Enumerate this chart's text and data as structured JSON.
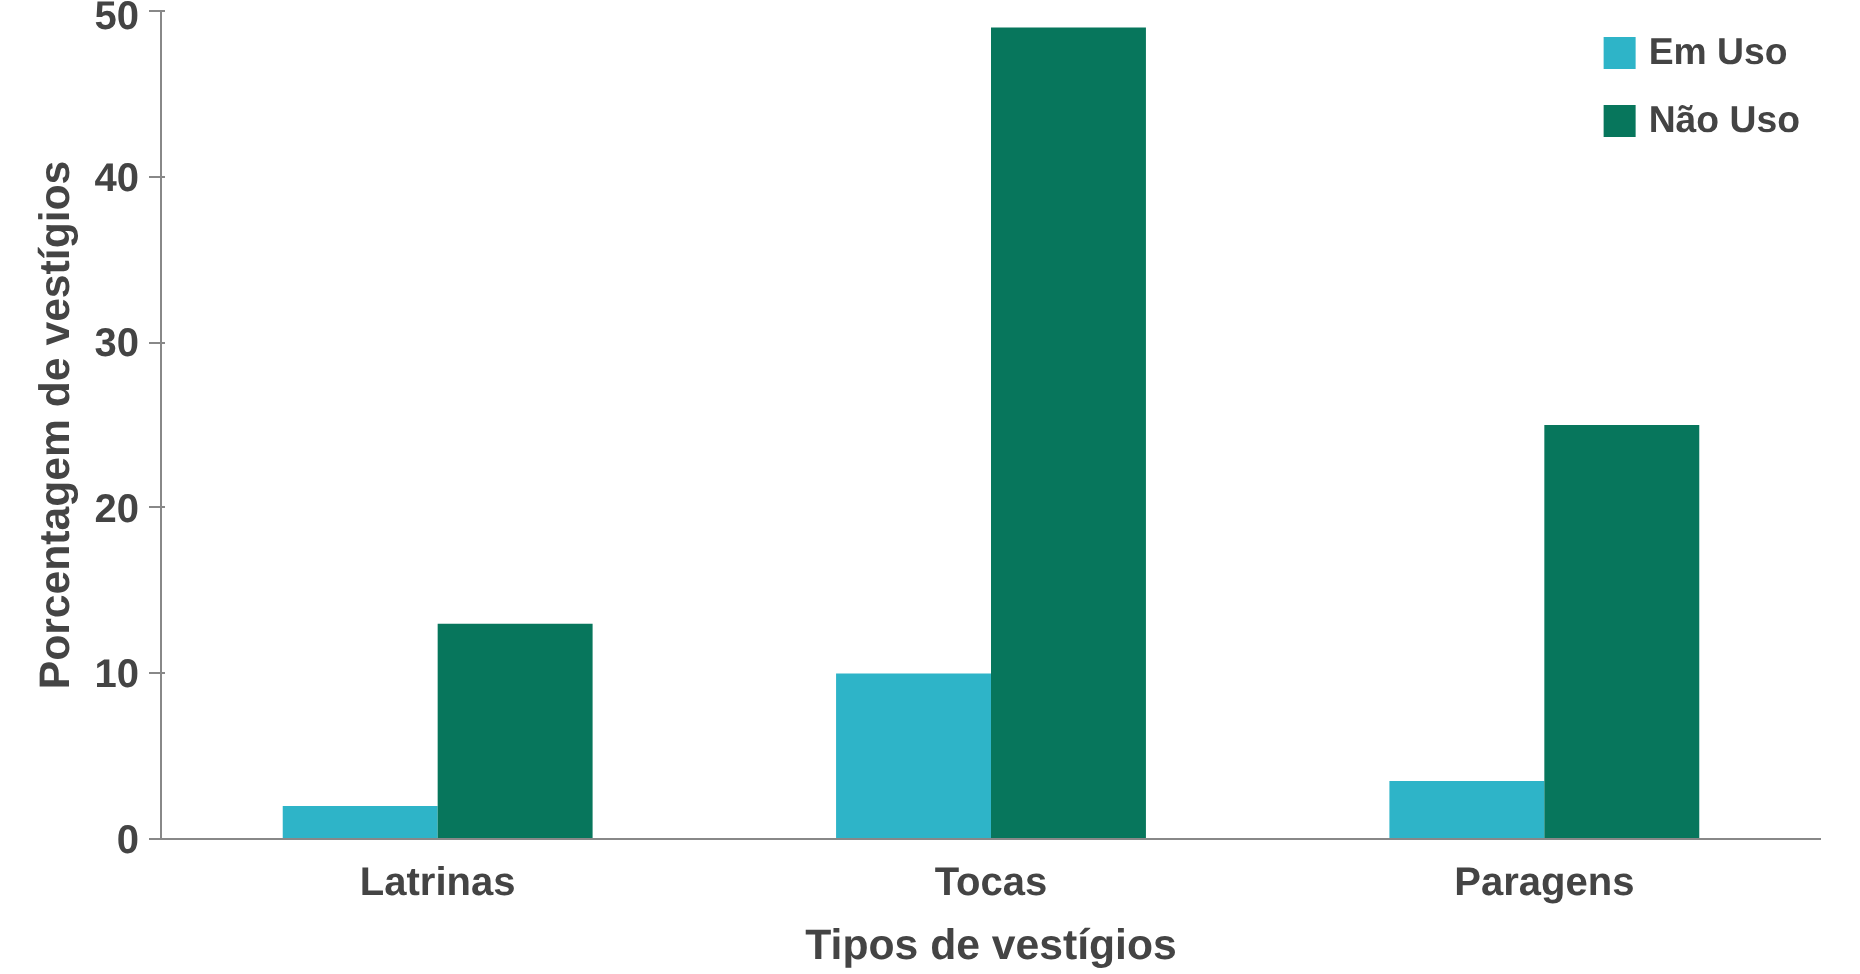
{
  "chart_data": {
    "type": "bar",
    "xlabel": "Tipos de vestígios",
    "ylabel": "Porcentagem de vestígios",
    "categories": [
      "Latrinas",
      "Tocas",
      "Paragens"
    ],
    "series": [
      {
        "name": "Em Uso",
        "color": "#2eb4c8",
        "values": [
          2,
          10,
          3.5
        ]
      },
      {
        "name": "Não Uso",
        "color": "#07765c",
        "values": [
          13,
          49,
          25
        ]
      }
    ],
    "ylim": [
      0,
      50
    ],
    "yticks": [
      0,
      10,
      20,
      30,
      40,
      50
    ],
    "grid": false,
    "legend": "top right"
  }
}
